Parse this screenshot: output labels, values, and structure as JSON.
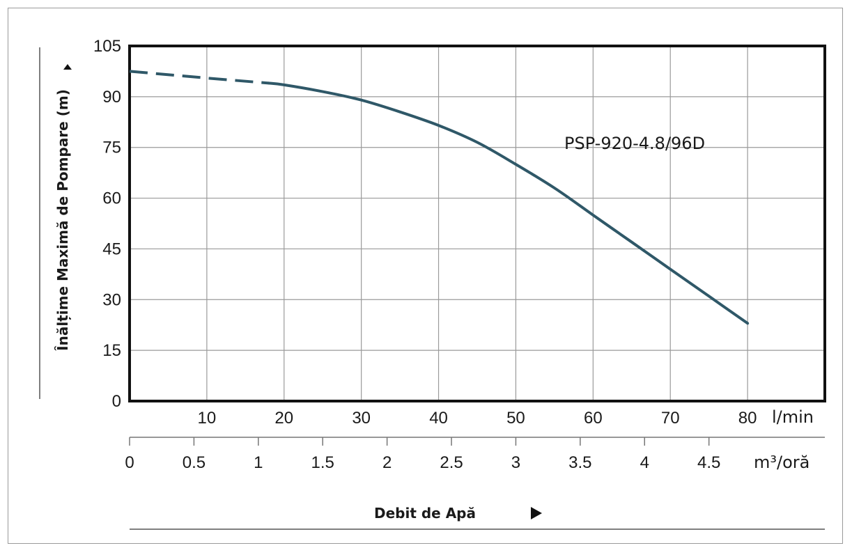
{
  "chart_data": {
    "type": "line",
    "ylabel": "Înălțime Maximă de Pompare (m)",
    "xlabel": "Debit de Apă",
    "x_unit_primary": "l/min",
    "x_unit_secondary": "m³/oră",
    "ylim": [
      0,
      105
    ],
    "yticks": [
      "0",
      "15",
      "30",
      "45",
      "60",
      "75",
      "90",
      "105"
    ],
    "yticks_values": [
      0,
      15,
      30,
      45,
      60,
      75,
      90,
      105
    ],
    "xlim": [
      0,
      90
    ],
    "xticks": [
      "10",
      "20",
      "30",
      "40",
      "50",
      "60",
      "70",
      "80"
    ],
    "xticks_values": [
      10,
      20,
      30,
      40,
      50,
      60,
      70,
      80
    ],
    "x2lim": [
      0,
      5.4
    ],
    "x2ticks": [
      "0",
      "0.5",
      "1",
      "1.5",
      "2",
      "2.5",
      "3",
      "3.5",
      "4",
      "4.5"
    ],
    "x2ticks_values": [
      0,
      0.5,
      1,
      1.5,
      2,
      2.5,
      3,
      3.5,
      4,
      4.5
    ],
    "grid": true,
    "series": [
      {
        "name": "PSP-920-4.8/96D",
        "color": "#2f5868",
        "dashed_segment": {
          "x": [
            0,
            10,
            18
          ],
          "y": [
            97.5,
            95.5,
            94
          ]
        },
        "solid_segment": {
          "x": [
            18,
            20,
            25,
            30,
            35,
            40,
            45,
            50,
            55,
            60,
            65,
            70,
            75,
            80
          ],
          "y": [
            94,
            93.5,
            91.5,
            89,
            85.5,
            81.5,
            76.5,
            70,
            63,
            55,
            47,
            39,
            31,
            23
          ]
        }
      }
    ]
  },
  "colors": {
    "grid": "#9a9a9a",
    "frame": "#111111",
    "series": "#2f5868"
  }
}
